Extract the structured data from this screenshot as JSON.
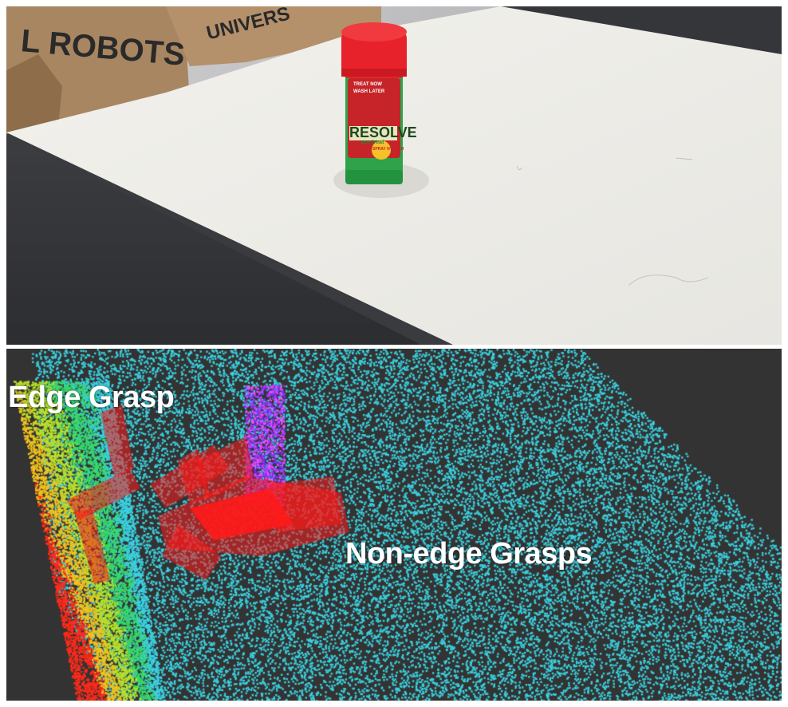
{
  "photo": {
    "box_text_left": "L ROBOTS",
    "box_text_right": "UNIVERS",
    "product_brand": "RESOLVE",
    "product_line1": "TREAT NOW",
    "product_line2": "WASH LATER",
    "product_badge": "SPRAY N' WASH",
    "product_sub": "pre-treat"
  },
  "pointcloud": {
    "labels": {
      "edge": "Edge Grasp",
      "non_edge": "Non-edge Grasps"
    },
    "colors": {
      "background": "#333333",
      "table_points": "#3ad1e0",
      "edge_gradient": [
        "#3ad1e0",
        "#38d86a",
        "#b8e02a",
        "#f2c21e",
        "#ff2a1a"
      ],
      "grasp": "#ff1a1a",
      "object_points": [
        "#7a2cff",
        "#b43cff",
        "#ff4cff"
      ]
    }
  }
}
